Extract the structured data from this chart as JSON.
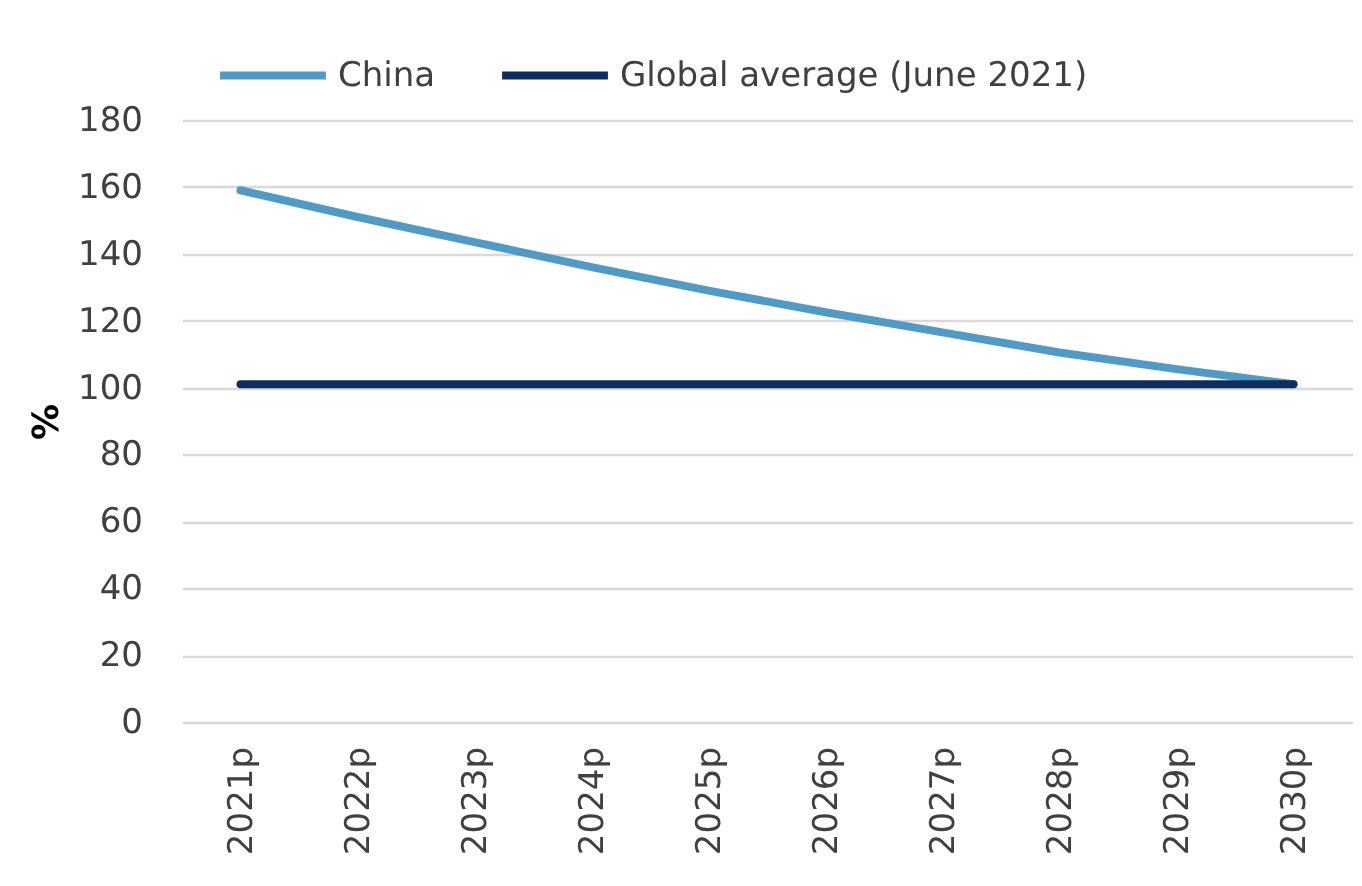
{
  "chart_data": {
    "type": "line",
    "categories": [
      "2021p",
      "2022p",
      "2023p",
      "2024p",
      "2025p",
      "2026p",
      "2027p",
      "2028p",
      "2029p",
      "2030p"
    ],
    "series": [
      {
        "name": "China",
        "color": "#4f9bc6",
        "values": [
          159,
          151,
          143.5,
          136,
          129,
          122.5,
          116.5,
          110.5,
          105.5,
          101
        ]
      },
      {
        "name": "Global average (June 2021)",
        "color": "#0b2d5f",
        "values": [
          101,
          101,
          101,
          101,
          101,
          101,
          101,
          101,
          101,
          101
        ]
      }
    ],
    "ylabel": "%",
    "ylim": [
      0,
      180
    ],
    "yticks": [
      0,
      20,
      40,
      60,
      80,
      100,
      120,
      140,
      160,
      180
    ],
    "grid": "y",
    "legend": "top",
    "line_style": "solid"
  }
}
